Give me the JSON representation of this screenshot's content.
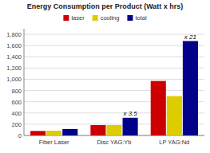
{
  "chart_data": {
    "type": "bar",
    "title": "Energy Consumption per Product (Watt x hrs)",
    "categories": [
      "Fiber Laser",
      "Disc YAG:Yb",
      "LP YAG:Nd"
    ],
    "series": [
      {
        "name": "laser",
        "color": "#cc0000",
        "values": [
          80,
          185,
          970
        ]
      },
      {
        "name": "cooling",
        "color": "#ddcc00",
        "values": [
          85,
          185,
          700
        ]
      },
      {
        "name": "total",
        "color": "#000088",
        "values": [
          115,
          315,
          1680
        ]
      }
    ],
    "ylim": [
      0,
      1900
    ],
    "yticks": [
      0,
      200,
      400,
      600,
      800,
      {
        "value": 1000,
        "label": "1,000"
      },
      {
        "value": 1200,
        "label": "1,200"
      },
      {
        "value": 1400,
        "label": "1,400"
      },
      {
        "value": 1600,
        "label": "1,600"
      },
      {
        "value": 1800,
        "label": "1,800"
      }
    ],
    "grid": true,
    "legend": "top",
    "annotations": [
      "x 3.5",
      "x 21"
    ]
  }
}
